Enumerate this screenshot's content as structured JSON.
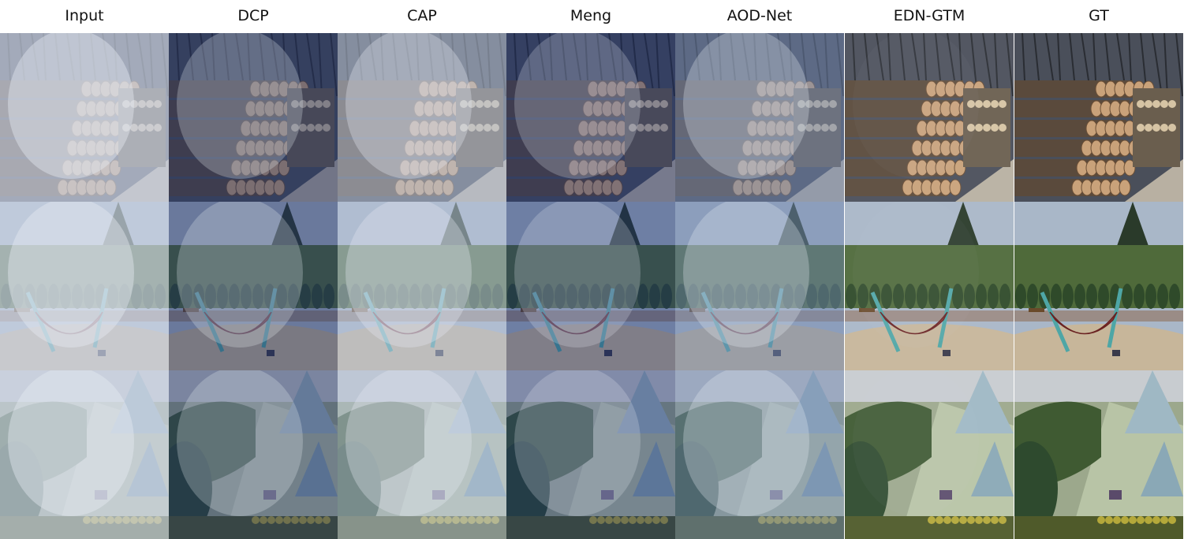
{
  "columns": [
    {
      "label": "Input"
    },
    {
      "label": "DCP"
    },
    {
      "label": "CAP"
    },
    {
      "label": "Meng"
    },
    {
      "label": "AOD-Net"
    },
    {
      "label": "EDN-GTM"
    },
    {
      "label": "GT"
    }
  ],
  "rows": [
    {
      "scene": "log-pile"
    },
    {
      "scene": "hammock"
    },
    {
      "scene": "hedge-garden"
    }
  ],
  "methods": [
    {
      "tint": "#c9d2e2",
      "haze": 0.7
    },
    {
      "tint": "#1d2f66",
      "haze": 0.45
    },
    {
      "tint": "#b6c3d8",
      "haze": 0.55
    },
    {
      "tint": "#172a6e",
      "haze": 0.4
    },
    {
      "tint": "#6f86b0",
      "haze": 0.5
    },
    {
      "tint": "#ffffff",
      "haze": 0.05
    },
    {
      "tint": "#ffffff",
      "haze": 0.0
    }
  ]
}
